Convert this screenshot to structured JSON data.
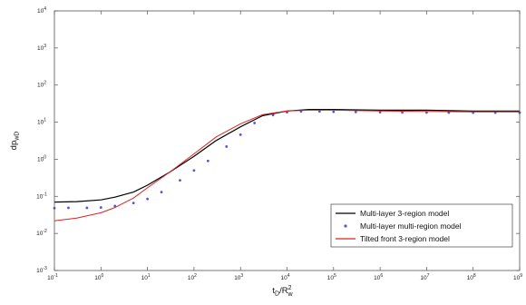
{
  "chart_data": {
    "type": "line",
    "title": "",
    "xlabel": "t_D/R_w^2",
    "xlabel_main": "t",
    "xlabel_sub": "D",
    "xlabel_slash": "/R",
    "xlabel_sup": "2",
    "xlabel_sub2": "w",
    "ylabel": "dp_wD",
    "ylabel_main": "dp",
    "ylabel_sub": "wD",
    "xscale": "log",
    "yscale": "log",
    "xlim": [
      0.1,
      1000000000
    ],
    "ylim": [
      0.001,
      10000
    ],
    "x_tick_values": [
      0.1,
      1,
      10,
      100,
      1000,
      10000,
      100000,
      1000000,
      10000000,
      100000000,
      1000000000
    ],
    "x_tick_labels": [
      {
        "base": "10",
        "exp": "-1"
      },
      {
        "base": "10",
        "exp": "0"
      },
      {
        "base": "10",
        "exp": "1"
      },
      {
        "base": "10",
        "exp": "2"
      },
      {
        "base": "10",
        "exp": "3"
      },
      {
        "base": "10",
        "exp": "4"
      },
      {
        "base": "10",
        "exp": "5"
      },
      {
        "base": "10",
        "exp": "6"
      },
      {
        "base": "10",
        "exp": "7"
      },
      {
        "base": "10",
        "exp": "8"
      },
      {
        "base": "10",
        "exp": "9"
      }
    ],
    "y_tick_values": [
      0.001,
      0.01,
      0.1,
      1,
      10,
      100,
      1000,
      10000
    ],
    "y_tick_labels": [
      {
        "base": "10",
        "exp": "-3"
      },
      {
        "base": "10",
        "exp": "-2"
      },
      {
        "base": "10",
        "exp": "-1"
      },
      {
        "base": "10",
        "exp": "0"
      },
      {
        "base": "10",
        "exp": "1"
      },
      {
        "base": "10",
        "exp": "2"
      },
      {
        "base": "10",
        "exp": "3"
      },
      {
        "base": "10",
        "exp": "4"
      }
    ],
    "grid": false,
    "legend_position": "bottom-right",
    "series": [
      {
        "name": "Multi-layer 3-region model",
        "color": "#000000",
        "style": "solid-line",
        "x": [
          0.1,
          0.3,
          1,
          2,
          5,
          10,
          30,
          100,
          300,
          1000,
          3000,
          10000,
          30000,
          100000,
          1000000,
          10000000,
          100000000,
          1000000000
        ],
        "y": [
          0.07,
          0.072,
          0.08,
          0.095,
          0.13,
          0.2,
          0.45,
          1.2,
          3.2,
          7.5,
          15,
          20,
          22,
          22,
          21,
          21,
          20,
          20
        ]
      },
      {
        "name": "Multi-layer multi-region model",
        "color": "#5555dd",
        "style": "markers",
        "x": [
          0.1,
          0.2,
          0.5,
          1,
          2,
          5,
          10,
          20,
          50,
          100,
          200,
          500,
          1000,
          2000,
          5000,
          10000,
          20000,
          50000,
          100000,
          300000,
          1000000,
          3000000,
          10000000,
          30000000,
          100000000,
          300000000,
          1000000000
        ],
        "y": [
          0.048,
          0.049,
          0.049,
          0.05,
          0.055,
          0.066,
          0.085,
          0.13,
          0.27,
          0.5,
          0.9,
          2.2,
          4.6,
          9.5,
          15.5,
          18.5,
          19.5,
          19.5,
          19,
          18.8,
          18.5,
          18.3,
          18.2,
          18.1,
          18,
          18,
          18
        ]
      },
      {
        "name": "Tilted front 3-region model",
        "color": "#dd2222",
        "style": "solid-line",
        "x": [
          0.1,
          0.3,
          1,
          2,
          5,
          10,
          30,
          100,
          300,
          1000,
          3000,
          10000,
          30000,
          100000,
          1000000,
          10000000,
          100000000,
          1000000000
        ],
        "y": [
          0.022,
          0.026,
          0.036,
          0.05,
          0.09,
          0.17,
          0.45,
          1.4,
          4,
          9,
          16,
          20,
          21,
          21,
          20,
          19.5,
          19,
          19
        ]
      }
    ]
  }
}
